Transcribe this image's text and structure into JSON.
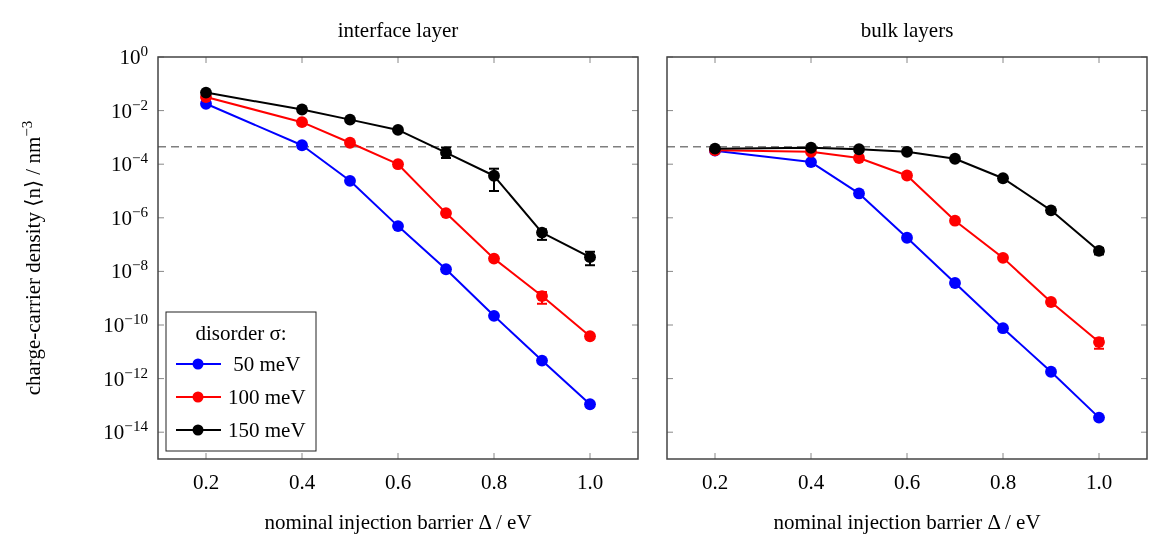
{
  "chart_data": [
    {
      "type": "line",
      "title": "interface layer",
      "xlabel": "nominal injection barrier Δ / eV",
      "ylabel": "charge-carrier density ⟨n⟩ / nm$^{−3}$",
      "legend_title": "disorder σ:",
      "legend": "bottom left",
      "log": "y",
      "marker": "circle",
      "line_style": "solid",
      "grid": false,
      "x": [
        0.2,
        0.4,
        0.5,
        0.6,
        0.7,
        0.8,
        0.9,
        1.0
      ],
      "xlim": [
        0.1,
        1.1
      ],
      "xticks": [
        0.2,
        0.4,
        0.6,
        0.8,
        {
          "value": 1,
          "label": "1.0"
        }
      ],
      "ylim": [
        1e-15,
        1
      ],
      "yticks": [
        {
          "value": 1,
          "label": "10$^{0}$"
        },
        {
          "value": 0.01,
          "label": "10$^{−2}$"
        },
        {
          "value": 0.0001,
          "label": "10$^{−4}$"
        },
        {
          "value": 1e-06,
          "label": "10$^{−6}$"
        },
        {
          "value": 1e-08,
          "label": "10$^{−8}$"
        },
        {
          "value": 1e-10,
          "label": "10$^{−10}$"
        },
        {
          "value": 1e-12,
          "label": "10$^{−12}$"
        },
        {
          "value": 1e-14,
          "label": "10$^{−14}$"
        }
      ],
      "ref_lines": [
        {
          "axis": "y",
          "value": 0.00045,
          "color": "#7f7f7f",
          "line_style": "dashed"
        }
      ],
      "series": [
        {
          "name": " 50 meV",
          "color": "#0000ff",
          "values": [
            0.018,
            0.00051,
            2.4e-05,
            4.9e-07,
            1.2e-08,
            2.2e-10,
            4.7e-12,
            1.1e-13
          ]
        },
        {
          "name": "100 meV",
          "color": "#ff0000",
          "values": [
            0.032,
            0.0037,
            0.00063,
            0.0001,
            1.5e-06,
            3e-08,
            1.2e-09,
            3.8e-11
          ],
          "errors": [
            null,
            null,
            null,
            null,
            null,
            null,
            [
              6.2e-10,
              1.7e-09
            ],
            null
          ]
        },
        {
          "name": "150 meV",
          "color": "#000000",
          "values": [
            0.047,
            0.011,
            0.0046,
            0.0019,
            0.00027,
            3.7e-05,
            2.8e-07,
            3.4e-08
          ],
          "errors": [
            null,
            null,
            null,
            null,
            [
              0.00017,
              0.00042
            ],
            [
              1e-05,
              6.8e-05
            ],
            [
              1.5e-07,
              3.7e-07
            ],
            [
              1.7e-08,
              5.4e-08
            ]
          ]
        }
      ]
    },
    {
      "type": "line",
      "title": "bulk layers",
      "xlabel": "nominal injection barrier Δ / eV",
      "log": "y",
      "marker": "circle",
      "line_style": "solid",
      "grid": false,
      "tick_labels": "x",
      "x": [
        0.2,
        0.4,
        0.5,
        0.6,
        0.7,
        0.8,
        0.9,
        1.0
      ],
      "xlim": [
        0.1,
        1.1
      ],
      "xticks": [
        0.2,
        0.4,
        0.6,
        0.8,
        {
          "value": 1,
          "label": "1.0"
        }
      ],
      "ylim": [
        1e-15,
        1
      ],
      "yticks": [
        {
          "value": 1,
          "label": null
        },
        {
          "value": 0.01,
          "label": null
        },
        {
          "value": 0.0001,
          "label": null
        },
        {
          "value": 1e-06,
          "label": null
        },
        {
          "value": 1e-08,
          "label": null
        },
        {
          "value": 1e-10,
          "label": null
        },
        {
          "value": 1e-12,
          "label": null
        },
        {
          "value": 1e-14,
          "label": null
        }
      ],
      "ref_lines": [
        {
          "axis": "y",
          "value": 0.00045,
          "color": "#7f7f7f",
          "line_style": "dashed"
        }
      ],
      "series": [
        {
          "color": "#0000ff",
          "values": [
            0.00032,
            0.00012,
            8.1e-06,
            1.8e-07,
            3.7e-09,
            7.6e-11,
            1.8e-12,
            3.5e-14
          ]
        },
        {
          "color": "#ff0000",
          "values": [
            0.00033,
            0.00029,
            0.00017,
            3.8e-05,
            7.8e-07,
            3.2e-08,
            7.2e-10,
            2.3e-11
          ],
          "errors": [
            null,
            null,
            null,
            null,
            null,
            null,
            null,
            [
              1.3e-11,
              3.2e-11
            ]
          ]
        },
        {
          "color": "#000000",
          "values": [
            0.00038,
            0.00041,
            0.00036,
            0.00029,
            0.00016,
            3e-05,
            1.9e-06,
            5.8e-08
          ],
          "errors": [
            null,
            null,
            null,
            null,
            null,
            null,
            null,
            [
              4.3e-08,
              7.5e-08
            ]
          ]
        }
      ]
    }
  ]
}
